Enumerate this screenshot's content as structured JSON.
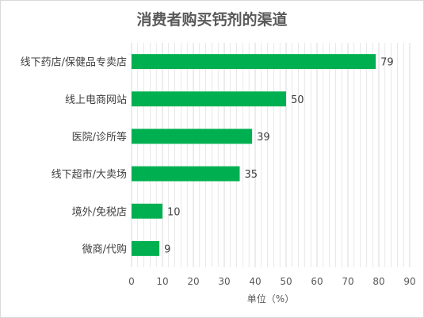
{
  "chart_data": {
    "type": "bar",
    "orientation": "horizontal",
    "title": "消费者购买钙剂的渠道",
    "categories": [
      "线下药店/保健品专卖店",
      "线上电商网站",
      "医院/诊所等",
      "线下超市/大卖场",
      "境外/免税店",
      "微商/代购"
    ],
    "values": [
      79,
      50,
      39,
      35,
      10,
      9
    ],
    "xlabel": "单位（%）",
    "ylabel": "",
    "xlim": [
      0,
      90
    ],
    "x_ticks": [
      "0",
      "10",
      "20",
      "30",
      "40",
      "50",
      "60",
      "70",
      "80",
      "90"
    ],
    "grid": "vertical",
    "legend": "none",
    "bar_color": "#00b050",
    "grid_color": "#d9d9d9"
  }
}
